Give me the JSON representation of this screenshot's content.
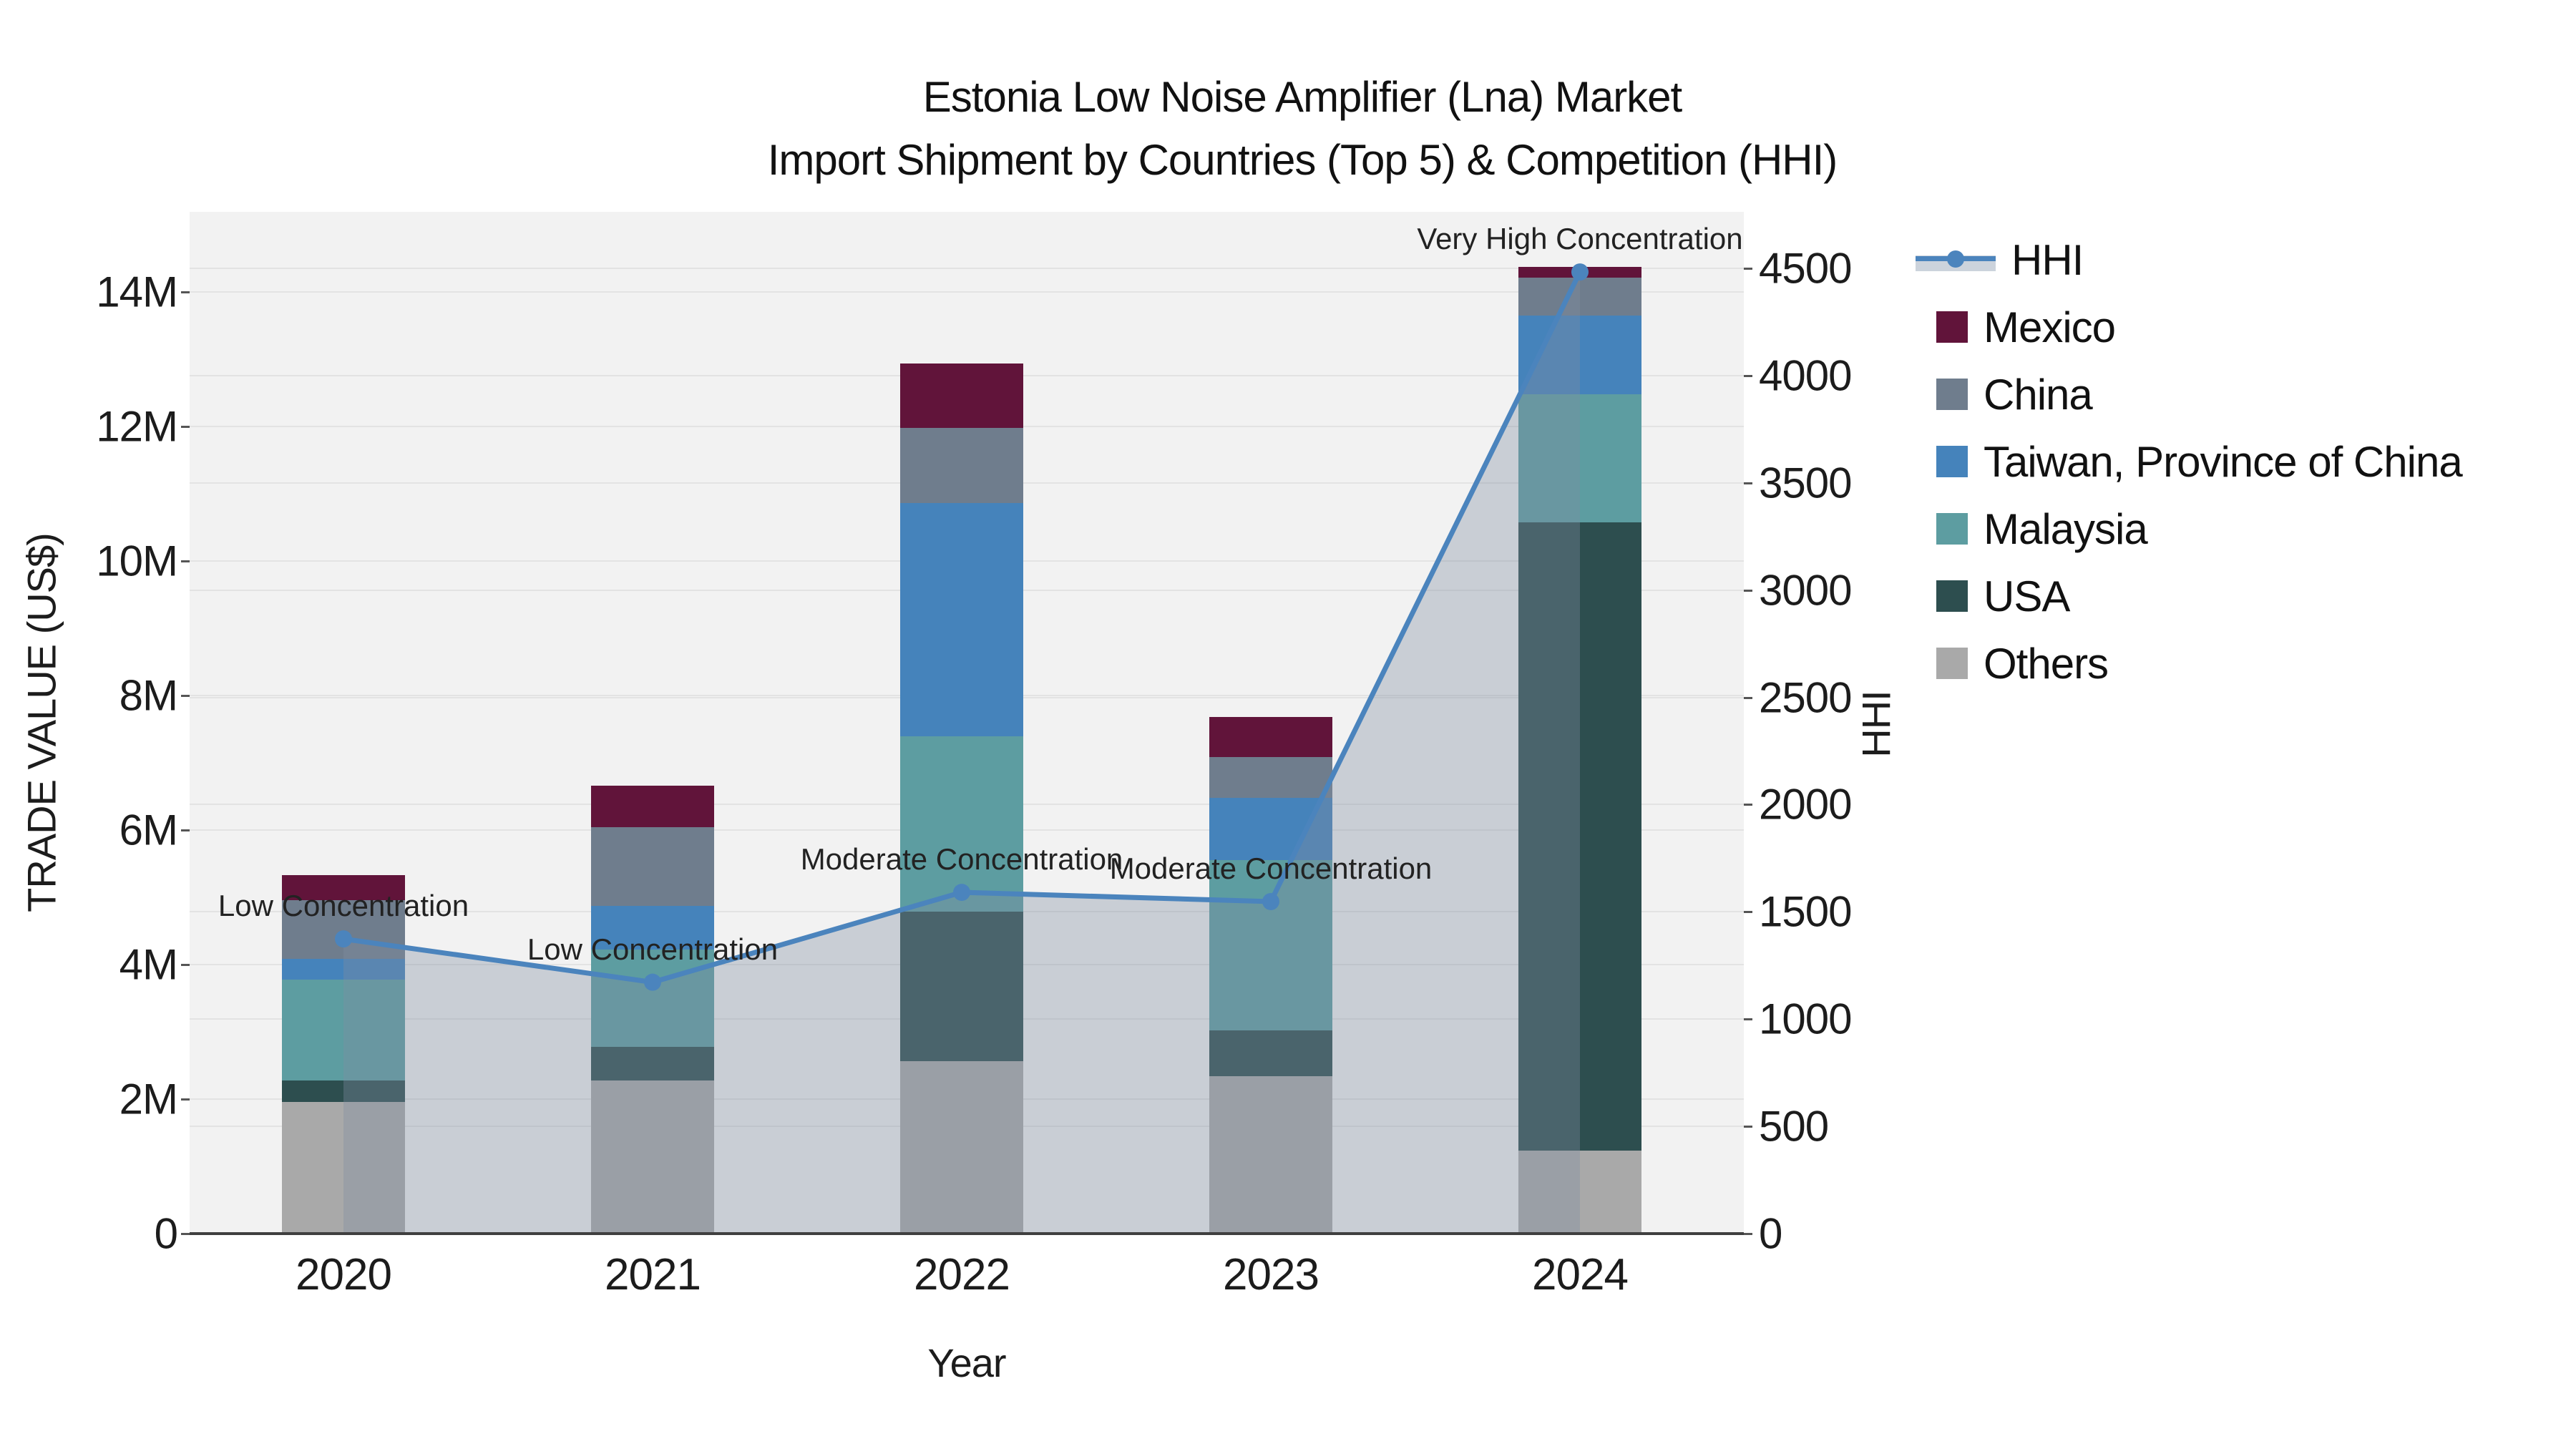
{
  "title": {
    "line1": "Estonia Low Noise Amplifier (Lna) Market",
    "line2": "Import Shipment by Countries (Top 5) & Competition (HHI)"
  },
  "axes": {
    "x": {
      "title": "Year",
      "ticks": [
        "2020",
        "2021",
        "2022",
        "2023",
        "2024"
      ]
    },
    "y_left": {
      "title": "TRADE VALUE (US$)",
      "ticks": [
        "0",
        "2M",
        "4M",
        "6M",
        "8M",
        "10M",
        "12M",
        "14M"
      ]
    },
    "y_right": {
      "title": "HHI",
      "ticks": [
        "0",
        "500",
        "1000",
        "1500",
        "2000",
        "2500",
        "3000",
        "3500",
        "4000",
        "4500"
      ]
    }
  },
  "legend": {
    "items": [
      {
        "label": "HHI",
        "swatch": "line",
        "color_key": "hhi_line"
      },
      {
        "label": "Mexico",
        "swatch": "square",
        "color_key": "mexico"
      },
      {
        "label": "China",
        "swatch": "square",
        "color_key": "china"
      },
      {
        "label": "Taiwan, Province of China",
        "swatch": "square",
        "color_key": "taiwan"
      },
      {
        "label": "Malaysia",
        "swatch": "square",
        "color_key": "malaysia"
      },
      {
        "label": "USA",
        "swatch": "square",
        "color_key": "usa"
      },
      {
        "label": "Others",
        "swatch": "square",
        "color_key": "others"
      }
    ]
  },
  "colors": {
    "hhi_line": "#4b84bd",
    "hhi_area_fill": "rgba(128,142,160,0.36)",
    "mexico": "#61143a",
    "china": "#6f7d8d",
    "taiwan": "#4583bb",
    "malaysia": "#5d9da1",
    "usa": "#2d4e4f",
    "others": "#a9a9a9",
    "plot_bg": "#f2f2f2",
    "grid_line": "#e3e3e3",
    "axis_line": "#3f3f3f"
  },
  "chart_data": {
    "type": "bar",
    "stacked": true,
    "title": "Estonia Low Noise Amplifier (Lna) Market — Import Shipment by Countries (Top 5) & Competition (HHI)",
    "categories": [
      2020,
      2021,
      2022,
      2023,
      2024
    ],
    "unit": "US$ millions (trade value, left axis)",
    "series": [
      {
        "name": "Mexico",
        "color_key": "mexico",
        "values": [
          0.37,
          0.62,
          0.96,
          0.59,
          0.16
        ]
      },
      {
        "name": "China",
        "color_key": "china",
        "values": [
          0.87,
          1.17,
          1.12,
          0.61,
          0.56
        ]
      },
      {
        "name": "Taiwan, Province of China",
        "color_key": "taiwan",
        "values": [
          0.31,
          0.65,
          3.47,
          0.93,
          1.17
        ]
      },
      {
        "name": "Malaysia",
        "color_key": "malaysia",
        "values": [
          1.5,
          1.44,
          2.6,
          2.53,
          1.91
        ]
      },
      {
        "name": "USA",
        "color_key": "usa",
        "values": [
          0.32,
          0.5,
          2.23,
          0.68,
          9.34
        ]
      },
      {
        "name": "Others",
        "color_key": "others",
        "values": [
          1.96,
          2.28,
          2.56,
          2.34,
          1.23
        ]
      }
    ],
    "totals": [
      5.33,
      6.66,
      12.94,
      7.68,
      14.37
    ],
    "line_overlay": {
      "name": "HHI",
      "axis": "right",
      "values": [
        1374,
        1172,
        1591,
        1548,
        4483
      ],
      "point_labels": [
        "Low Concentration",
        "Low Concentration",
        "Moderate Concentration",
        "Moderate Concentration",
        "Very High Concentration"
      ]
    },
    "xlabel": "Year",
    "ylabel_left": "TRADE VALUE (US$)",
    "ylabel_right": "HHI",
    "ylim_left_usd": [
      0,
      15200000
    ],
    "ylim_right_hhi": [
      0,
      4765
    ],
    "grid": true,
    "legend_position": "right"
  },
  "annotations": [
    {
      "year": "2020",
      "text": "Low Concentration"
    },
    {
      "year": "2021",
      "text": "Low Concentration"
    },
    {
      "year": "2022",
      "text": "Moderate Concentration"
    },
    {
      "year": "2023",
      "text": "Moderate Concentration"
    },
    {
      "year": "2024",
      "text": "Very High Concentration"
    }
  ]
}
